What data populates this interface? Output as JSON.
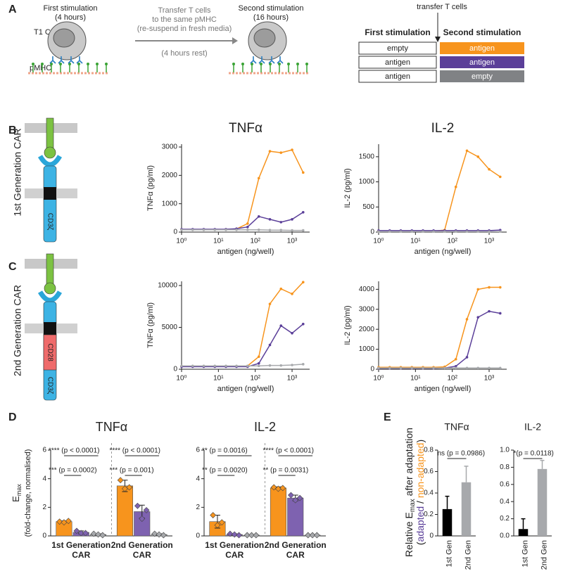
{
  "panel_labels": [
    "A",
    "B",
    "C",
    "D",
    "E"
  ],
  "diagram": {
    "first_title": "First stimulation",
    "first_time": "(4 hours)",
    "second_title": "Second stimulation",
    "second_time": "(16 hours)",
    "transfer": [
      "Transfer T cells",
      "to the same pMHC",
      "(re-suspend in fresh media)"
    ],
    "rest": "(4 hours rest)",
    "car_label": "T1 CAR",
    "pmhc_label": "pMHC"
  },
  "conditions": {
    "transfer": "transfer T cells",
    "headers": [
      "First stimulation",
      "Second stimulation"
    ],
    "rows": [
      [
        "empty",
        "antigen"
      ],
      [
        "antigen",
        "antigen"
      ],
      [
        "antigen",
        "empty"
      ]
    ],
    "colors": [
      "#f7941d",
      "#5b3f99",
      "#808285"
    ]
  },
  "cars": [
    {
      "label": "1st Generation CAR",
      "domains": [
        "CD3ζ"
      ]
    },
    {
      "label": "2nd Generation CAR",
      "domains": [
        "CD28",
        "CD3ζ"
      ]
    }
  ],
  "panel_e_ylabel": {
    "text": "Relative E",
    "sub": "max",
    "rest": " after adaptation",
    "open": "(",
    "adapted": "adapted",
    "slash": " / ",
    "non": "non-adapted",
    "close": ")"
  },
  "chart_data": [
    {
      "type": "line",
      "title": "TNFα",
      "x_label": "antigen (ng/well)",
      "y_label": "TNFα (pg/ml)",
      "xscale": "log",
      "x": [
        1,
        2,
        4,
        8,
        16,
        31,
        62,
        125,
        250,
        500,
        1000,
        2000
      ],
      "series": [
        {
          "color": "#f7941d",
          "values": [
            90,
            90,
            90,
            90,
            95,
            110,
            300,
            1900,
            2850,
            2800,
            2900,
            2100
          ]
        },
        {
          "color": "#5b3f99",
          "values": [
            100,
            100,
            100,
            100,
            100,
            120,
            180,
            550,
            450,
            350,
            450,
            700
          ]
        },
        {
          "color": "#a7a9ac",
          "values": [
            80,
            80,
            80,
            80,
            80,
            80,
            80,
            80,
            70,
            70,
            60,
            60
          ]
        }
      ],
      "xlim": [
        1,
        3000
      ],
      "xticks": [
        {
          "value": 1,
          "label": "10⁰"
        },
        {
          "value": 10,
          "label": "10¹"
        },
        {
          "value": 100,
          "label": "10²"
        },
        {
          "value": 1000,
          "label": "10³"
        }
      ],
      "ylim": [
        0,
        3100
      ],
      "yticks": [
        0,
        1000,
        2000,
        3000
      ]
    },
    {
      "type": "line",
      "title": "IL-2",
      "x_label": "antigen (ng/well)",
      "y_label": "IL-2 (pg/ml)",
      "xscale": "log",
      "x": [
        1,
        2,
        4,
        8,
        16,
        31,
        62,
        125,
        250,
        500,
        1000,
        2000
      ],
      "series": [
        {
          "color": "#f7941d",
          "values": [
            20,
            20,
            20,
            20,
            20,
            20,
            40,
            900,
            1620,
            1500,
            1250,
            1100
          ]
        },
        {
          "color": "#5b3f99",
          "values": [
            30,
            30,
            30,
            30,
            30,
            30,
            30,
            30,
            30,
            30,
            30,
            40
          ]
        },
        {
          "color": "#a7a9ac",
          "values": [
            10,
            10,
            10,
            10,
            10,
            10,
            10,
            10,
            10,
            10,
            10,
            10
          ]
        }
      ],
      "xlim": [
        1,
        3000
      ],
      "xticks": [
        {
          "value": 1,
          "label": "10⁰"
        },
        {
          "value": 10,
          "label": "10¹"
        },
        {
          "value": 100,
          "label": "10²"
        },
        {
          "value": 1000,
          "label": "10³"
        }
      ],
      "ylim": [
        0,
        1750
      ],
      "yticks": [
        0,
        500,
        1000,
        1500
      ]
    },
    {
      "type": "line",
      "x_label": "antigen (ng/well)",
      "y_label": "TNFα (pg/ml)",
      "xscale": "log",
      "x": [
        1,
        2,
        4,
        8,
        16,
        31,
        62,
        125,
        250,
        500,
        1000,
        2000
      ],
      "series": [
        {
          "color": "#f7941d",
          "values": [
            350,
            350,
            350,
            350,
            350,
            350,
            400,
            1500,
            7800,
            9600,
            9000,
            10400
          ]
        },
        {
          "color": "#5b3f99",
          "values": [
            300,
            300,
            300,
            300,
            300,
            300,
            300,
            700,
            2900,
            5200,
            4300,
            5400
          ]
        },
        {
          "color": "#a7a9ac",
          "values": [
            400,
            400,
            400,
            400,
            400,
            400,
            400,
            400,
            450,
            450,
            500,
            600
          ]
        }
      ],
      "xlim": [
        1,
        3000
      ],
      "xticks": [
        {
          "value": 1,
          "label": "10⁰"
        },
        {
          "value": 10,
          "label": "10¹"
        },
        {
          "value": 100,
          "label": "10²"
        },
        {
          "value": 1000,
          "label": "10³"
        }
      ],
      "ylim": [
        0,
        10500
      ],
      "yticks": [
        0,
        5000,
        10000
      ]
    },
    {
      "type": "line",
      "x_label": "antigen (ng/well)",
      "y_label": "IL-2 (pg/ml)",
      "xscale": "log",
      "x": [
        1,
        2,
        4,
        8,
        16,
        31,
        62,
        125,
        250,
        500,
        1000,
        2000
      ],
      "series": [
        {
          "color": "#f7941d",
          "values": [
            100,
            100,
            100,
            100,
            100,
            100,
            120,
            500,
            2500,
            4000,
            4100,
            4100
          ]
        },
        {
          "color": "#5b3f99",
          "values": [
            50,
            50,
            50,
            50,
            50,
            50,
            60,
            150,
            600,
            2600,
            2900,
            2800
          ]
        },
        {
          "color": "#a7a9ac",
          "values": [
            60,
            60,
            60,
            60,
            60,
            60,
            60,
            60,
            60,
            60,
            60,
            60
          ]
        }
      ],
      "xlim": [
        1,
        3000
      ],
      "xticks": [
        {
          "value": 1,
          "label": "10⁰"
        },
        {
          "value": 10,
          "label": "10¹"
        },
        {
          "value": 100,
          "label": "10²"
        },
        {
          "value": 1000,
          "label": "10³"
        }
      ],
      "ylim": [
        0,
        4400
      ],
      "yticks": [
        0,
        1000,
        2000,
        3000,
        4000
      ]
    },
    {
      "type": "bar",
      "title": "TNFα",
      "y_label": "E",
      "y_label_sub": "max",
      "y_label_note": "(fold-change, normalised)",
      "categories": [
        [
          "1st Generation",
          "CAR"
        ],
        [
          "2nd Generation",
          "CAR"
        ]
      ],
      "series": [
        {
          "color": "#f7941d",
          "values": [
            1.0,
            3.5
          ],
          "errors": [
            0.05,
            0.4
          ],
          "replicates": [
            [
              1.0,
              0.95,
              1.05
            ],
            [
              3.9,
              3.3,
              3.4
            ]
          ]
        },
        {
          "color": "#7e62b0",
          "values": [
            0.25,
            1.7
          ],
          "errors": [
            0.1,
            0.45
          ],
          "replicates": [
            [
              0.35,
              0.2,
              0.2
            ],
            [
              2.1,
              1.2,
              1.8
            ]
          ]
        },
        {
          "color": "#a7a9ac",
          "values": [
            0.1,
            0.1
          ],
          "errors": [
            0.05,
            0.05
          ],
          "replicates": [
            [
              0.15,
              0.1,
              0.05
            ],
            [
              0.15,
              0.1,
              0.05
            ]
          ]
        }
      ],
      "annotations": [
        "**** (p < 0.0001)",
        "*** (p = 0.0002)",
        "**** (p < 0.0001)",
        "*** (p = 0.001)"
      ],
      "ylim": [
        0,
        6
      ],
      "yticks": [
        0,
        2,
        4,
        6
      ]
    },
    {
      "type": "bar",
      "title": "IL-2",
      "categories": [
        [
          "1st Generation",
          "CAR"
        ],
        [
          "2nd Generation",
          "CAR"
        ]
      ],
      "series": [
        {
          "color": "#f7941d",
          "values": [
            1.0,
            3.35
          ],
          "errors": [
            0.45,
            0.08
          ],
          "replicates": [
            [
              1.45,
              0.75,
              0.95
            ],
            [
              3.4,
              3.3,
              3.35
            ]
          ]
        },
        {
          "color": "#7e62b0",
          "values": [
            0.1,
            2.65
          ],
          "errors": [
            0.05,
            0.2
          ],
          "replicates": [
            [
              0.15,
              0.1,
              0.05
            ],
            [
              2.85,
              2.5,
              2.65
            ]
          ]
        },
        {
          "color": "#a7a9ac",
          "values": [
            0.05,
            0.05
          ],
          "errors": [
            0.02,
            0.02
          ],
          "replicates": [
            [
              0.05,
              0.05,
              0.05
            ],
            [
              0.05,
              0.05,
              0.05
            ]
          ]
        }
      ],
      "annotations": [
        "** (p = 0.0016)",
        "** (p = 0.0020)",
        "**** (p < 0.0001)",
        "** (p = 0.0031)"
      ],
      "ylim": [
        0,
        6
      ],
      "yticks": [
        0,
        2,
        4,
        6
      ]
    },
    {
      "type": "bar",
      "title": "TNFα",
      "categories": [
        "1st Gen",
        "2nd Gen"
      ],
      "values": [
        0.25,
        0.5
      ],
      "errors": [
        0.12,
        0.15
      ],
      "colors": [
        "#000000",
        "#a7a9ac"
      ],
      "annotation": "ns (p = 0.0986)",
      "ylim": [
        0,
        0.8
      ],
      "yticks": [
        0,
        0.2,
        0.4,
        0.6,
        0.8
      ]
    },
    {
      "type": "bar",
      "title": "IL-2",
      "categories": [
        "1st Gen",
        "2nd Gen"
      ],
      "values": [
        0.08,
        0.78
      ],
      "errors": [
        0.12,
        0.1
      ],
      "colors": [
        "#000000",
        "#a7a9ac"
      ],
      "annotation": "*(p = 0.0118)",
      "ylim": [
        0,
        1.0
      ],
      "yticks": [
        {
          "value": 0,
          "label": "0.0"
        },
        0.2,
        0.4,
        0.6,
        0.8,
        {
          "value": 1,
          "label": "1.0"
        }
      ]
    }
  ]
}
